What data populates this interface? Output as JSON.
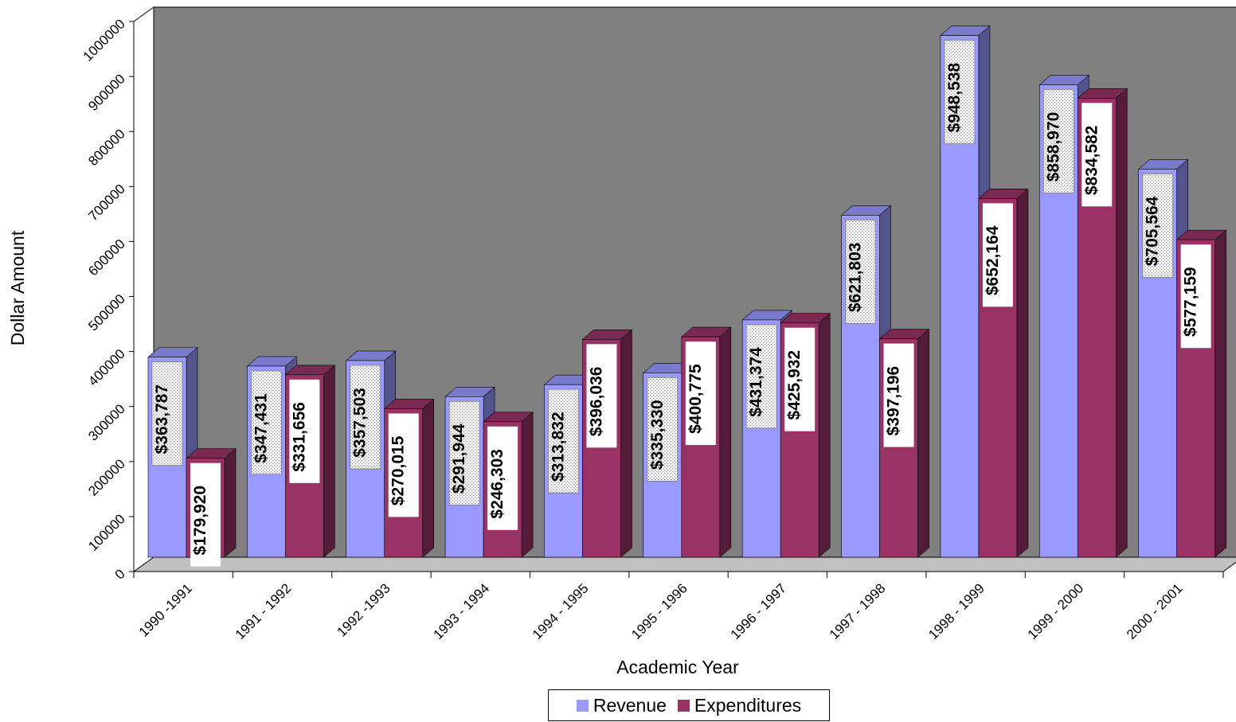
{
  "chart_data": {
    "type": "bar",
    "xlabel": "Academic Year",
    "ylabel": "Dollar Amount",
    "ylim": [
      0,
      1000000
    ],
    "y_tick_labels": [
      "0",
      "100000",
      "200000",
      "300000",
      "400000",
      "500000",
      "600000",
      "700000",
      "800000",
      "900000",
      "1000000"
    ],
    "categories": [
      "1990 -1991",
      "1991 - 1992",
      "1992 -1993",
      "1993 - 1994",
      "1994 - 1995",
      "1995 - 1996",
      "1996 - 1997",
      "1997 - 1998",
      "1998 - 1999",
      "1999 - 2000",
      "2000 - 2001"
    ],
    "series": [
      {
        "name": "Revenue",
        "color": "#9999ff",
        "values": [
          363787,
          347431,
          357503,
          291944,
          313832,
          335330,
          431374,
          621803,
          948538,
          858970,
          705564
        ],
        "labels": [
          "$363,787",
          "$347,431",
          "$357,503",
          "$291,944",
          "$313,832",
          "$335,330",
          "$431,374",
          "$621,803",
          "$948,538",
          "$858,970",
          "$705,564"
        ]
      },
      {
        "name": "Expenditures",
        "color": "#993366",
        "values": [
          179920,
          331656,
          270015,
          246303,
          396036,
          400775,
          425932,
          397196,
          652164,
          834582,
          577159
        ],
        "labels": [
          "$179,920",
          "$331,656",
          "$270,015",
          "$246,303",
          "$396,036",
          "$400,775",
          "$425,932",
          "$397,196",
          "$652,164",
          "$834,582",
          "$577,159"
        ]
      }
    ],
    "grid": false,
    "legend_position": "bottom",
    "wall_color": "#808080",
    "floor_color": "#c0c0c0"
  }
}
